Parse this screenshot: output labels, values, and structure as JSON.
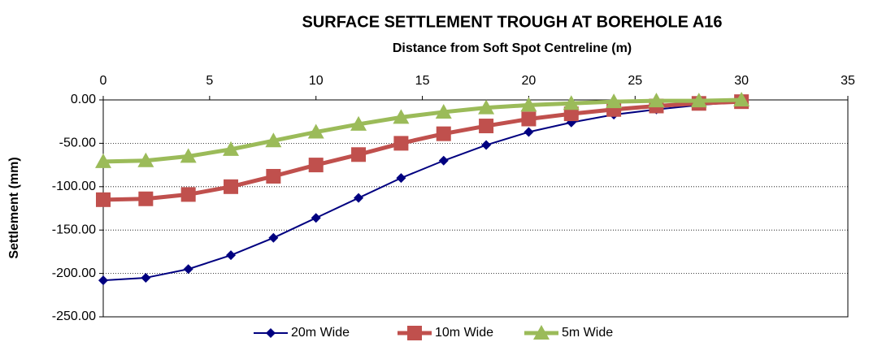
{
  "chart_data": {
    "type": "line",
    "title": "SURFACE SETTLEMENT TROUGH AT BOREHOLE A16",
    "x_label": "Distance from Soft Spot Centreline (m)",
    "y_label": "Settlement (mm)",
    "x": [
      0,
      2,
      4,
      6,
      8,
      10,
      12,
      14,
      16,
      18,
      20,
      22,
      24,
      26,
      28,
      30
    ],
    "series": [
      {
        "name": "20m Wide",
        "color": "#000080",
        "marker": "diamond",
        "values": [
          -208,
          -205,
          -195,
          -179,
          -159,
          -136,
          -113,
          -90,
          -70,
          -52,
          -37,
          -26,
          -17,
          -11,
          -6,
          -2
        ]
      },
      {
        "name": "10m Wide",
        "color": "#c0504d",
        "marker": "square",
        "values": [
          -115,
          -114,
          -109,
          -100,
          -88,
          -75,
          -63,
          -50,
          -39,
          -30,
          -22,
          -16,
          -11,
          -7,
          -4,
          -2
        ]
      },
      {
        "name": "5m Wide",
        "color": "#9bbb59",
        "marker": "triangle",
        "values": [
          -71,
          -70,
          -65,
          -57,
          -47,
          -37,
          -28,
          -20,
          -14,
          -9,
          -6,
          -4,
          -2,
          -1,
          -1,
          0
        ]
      }
    ],
    "xlim": [
      0,
      35
    ],
    "xticks": [
      0,
      5,
      10,
      15,
      20,
      25,
      30,
      35
    ],
    "x_axis_position": "top",
    "ylim": [
      -250,
      0
    ],
    "yticks": [
      {
        "value": 0,
        "label": "0.00"
      },
      {
        "value": -50,
        "label": "-50.00"
      },
      {
        "value": -100,
        "label": "-100.00"
      },
      {
        "value": -150,
        "label": "-150.00"
      },
      {
        "value": -200,
        "label": "-200.00"
      },
      {
        "value": -250,
        "label": "-250.00"
      }
    ],
    "grid": true,
    "legend": "bottom"
  }
}
